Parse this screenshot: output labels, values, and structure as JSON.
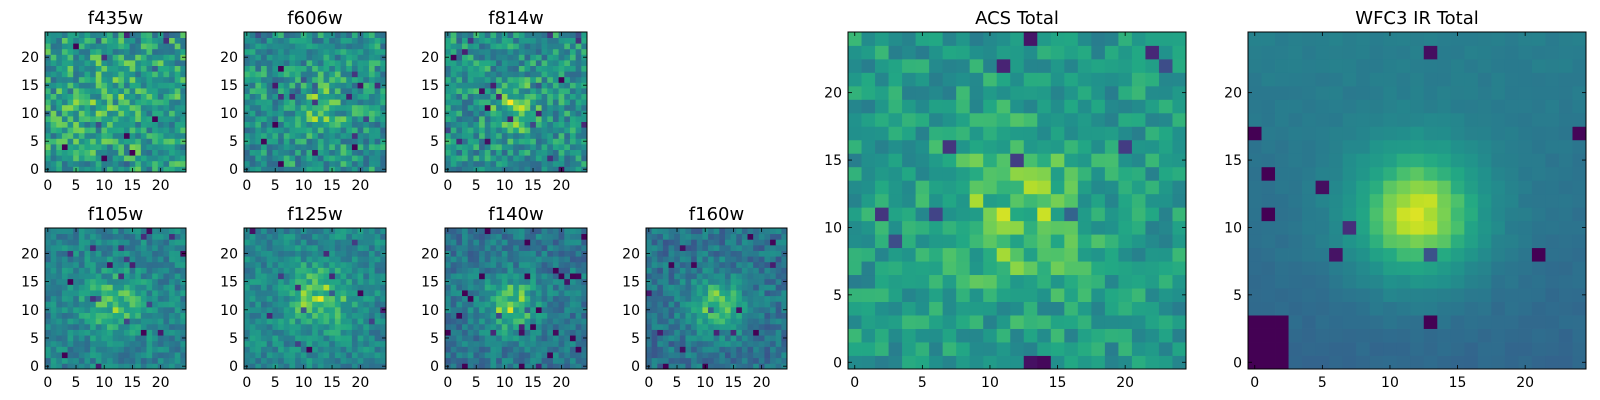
{
  "colormap": "viridis",
  "colors": {
    "low": "#440154",
    "mid": "#21918c",
    "high": "#fde725"
  },
  "chart_data": [
    {
      "type": "heatmap",
      "title": "f435w",
      "size": 25,
      "xticks": [
        "0",
        "5",
        "10",
        "15",
        "20"
      ],
      "yticks": [
        "0",
        "5",
        "10",
        "15",
        "20"
      ],
      "peak": [
        11,
        12
      ],
      "sigma": 6,
      "noise": 0.45,
      "base": 0.66,
      "amp": 0.06,
      "seed": 11
    },
    {
      "type": "heatmap",
      "title": "f606w",
      "size": 25,
      "xticks": [
        "0",
        "5",
        "10",
        "15",
        "20"
      ],
      "yticks": [
        "0",
        "5",
        "10",
        "15",
        "20"
      ],
      "peak": [
        13,
        11
      ],
      "sigma": 4,
      "noise": 0.42,
      "base": 0.62,
      "amp": 0.14,
      "seed": 23
    },
    {
      "type": "heatmap",
      "title": "f814w",
      "size": 25,
      "xticks": [
        "0",
        "5",
        "10",
        "15",
        "20"
      ],
      "yticks": [
        "0",
        "5",
        "10",
        "15",
        "20"
      ],
      "peak": [
        12,
        11
      ],
      "sigma": 3,
      "noise": 0.42,
      "base": 0.62,
      "amp": 0.22,
      "seed": 37
    },
    {
      "type": "heatmap",
      "title": "f105w",
      "size": 25,
      "xticks": [
        "0",
        "5",
        "10",
        "15",
        "20"
      ],
      "yticks": [
        "0",
        "5",
        "10",
        "15",
        "20"
      ],
      "peak": [
        12,
        11
      ],
      "sigma": 4,
      "noise": 0.3,
      "base": 0.56,
      "amp": 0.24,
      "seed": 41
    },
    {
      "type": "heatmap",
      "title": "f125w",
      "size": 25,
      "xticks": [
        "0",
        "5",
        "10",
        "15",
        "20"
      ],
      "yticks": [
        "0",
        "5",
        "10",
        "15",
        "20"
      ],
      "peak": [
        13,
        12
      ],
      "sigma": 4,
      "noise": 0.3,
      "base": 0.58,
      "amp": 0.28,
      "seed": 53
    },
    {
      "type": "heatmap",
      "title": "f140w",
      "size": 25,
      "xticks": [
        "0",
        "5",
        "10",
        "15",
        "20"
      ],
      "yticks": [
        "0",
        "5",
        "10",
        "15",
        "20"
      ],
      "peak": [
        11,
        11
      ],
      "sigma": 3.5,
      "noise": 0.3,
      "base": 0.5,
      "amp": 0.36,
      "seed": 67
    },
    {
      "type": "heatmap",
      "title": "f160w",
      "size": 25,
      "xticks": [
        "0",
        "5",
        "10",
        "15",
        "20"
      ],
      "yticks": [
        "0",
        "5",
        "10",
        "15",
        "20"
      ],
      "peak": [
        12,
        11
      ],
      "sigma": 3.5,
      "noise": 0.3,
      "base": 0.48,
      "amp": 0.38,
      "seed": 79
    },
    {
      "type": "heatmap",
      "title": "ACS Total",
      "size": 25,
      "xticks": [
        "0",
        "5",
        "10",
        "15",
        "20"
      ],
      "yticks": [
        "0",
        "5",
        "10",
        "15",
        "20"
      ],
      "peak": [
        12,
        11
      ],
      "sigma": 4,
      "noise": 0.28,
      "base": 0.66,
      "amp": 0.2,
      "seed": 97
    },
    {
      "type": "heatmap",
      "title": "WFC3 IR Total",
      "size": 25,
      "xticks": [
        "0",
        "5",
        "10",
        "15",
        "20"
      ],
      "yticks": [
        "0",
        "5",
        "10",
        "15",
        "20"
      ],
      "peak": [
        12,
        11
      ],
      "sigma": 3.6,
      "noise": 0.04,
      "base": 0.48,
      "amp": 0.5,
      "seed": 5,
      "gradient": 0.12,
      "dark_corner": true
    }
  ]
}
